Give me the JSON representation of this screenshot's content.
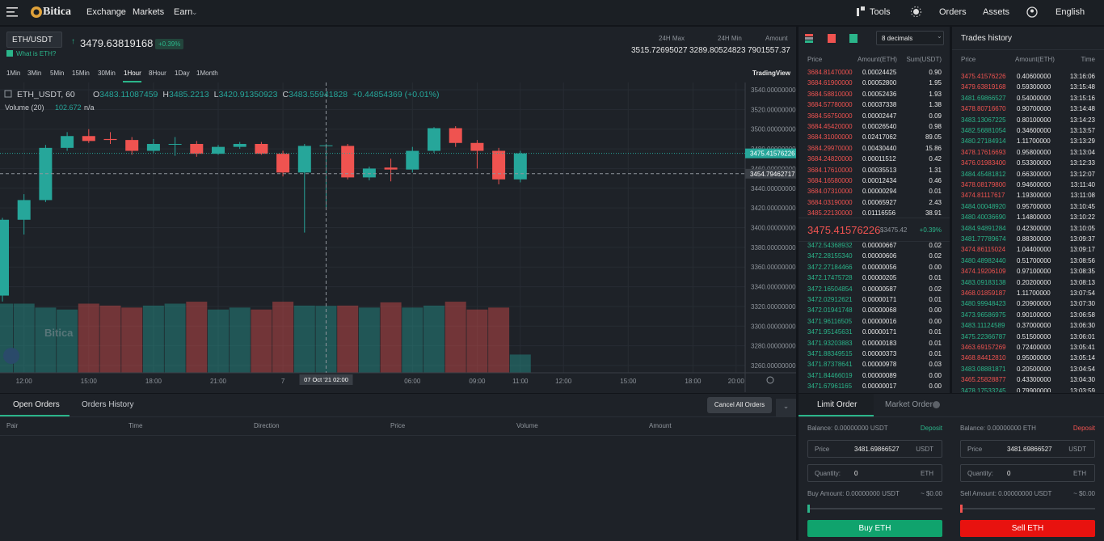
{
  "nav": {
    "logo": "Bitica",
    "links": [
      "Exchange",
      "Markets",
      "Earn"
    ],
    "tools": "Tools",
    "orders": "Orders",
    "assets": "Assets",
    "language": "English"
  },
  "ticker": {
    "pair": "ETH/USDT",
    "price": "3479.63819168",
    "change": "+0.39%",
    "info": "What is ETH?",
    "stats": [
      {
        "label": "24H Max",
        "value": "3515.72695027"
      },
      {
        "label": "24H Min",
        "value": "3289.80524823"
      },
      {
        "label": "Amount",
        "value": "7901557.37"
      }
    ]
  },
  "intervals": [
    "1Min",
    "3Min",
    "5Min",
    "15Min",
    "30Min",
    "1Hour",
    "8Hour",
    "1Day",
    "1Month"
  ],
  "active_interval": 5,
  "tradingview": "TradingView",
  "chart_data": {
    "type": "candlestick",
    "symbol": "ETH_USDT, 60",
    "ohlc_labels": [
      "O",
      "H",
      "L",
      "C"
    ],
    "change": "+0.44854369 (+0.01%)",
    "volume_label": "Volume (20)",
    "volume_extra": "n/a",
    "up_color": "#26a69a",
    "down_color": "#ef5350",
    "candles": [
      {
        "o": 3331,
        "h": 3410,
        "l": 3325,
        "c": 3408
      },
      {
        "o": 3408,
        "h": 3434,
        "l": 3393,
        "c": 3428
      },
      {
        "o": 3428,
        "h": 3484,
        "l": 3426,
        "c": 3481
      },
      {
        "o": 3481,
        "h": 3497,
        "l": 3478,
        "c": 3493
      },
      {
        "o": 3493,
        "h": 3500,
        "l": 3486,
        "c": 3488
      },
      {
        "o": 3490,
        "h": 3497,
        "l": 3485,
        "c": 3489
      },
      {
        "o": 3489,
        "h": 3492,
        "l": 3474,
        "c": 3478
      },
      {
        "o": 3478,
        "h": 3490,
        "l": 3476,
        "c": 3485
      },
      {
        "o": 3485,
        "h": 3492,
        "l": 3473,
        "c": 3485
      },
      {
        "o": 3485,
        "h": 3488,
        "l": 3472,
        "c": 3475
      },
      {
        "o": 3475,
        "h": 3484,
        "l": 3474,
        "c": 3482
      },
      {
        "o": 3482,
        "h": 3487,
        "l": 3480,
        "c": 3485
      },
      {
        "o": 3485,
        "h": 3487,
        "l": 3474,
        "c": 3475
      },
      {
        "o": 3475,
        "h": 3478,
        "l": 3452,
        "c": 3456
      },
      {
        "o": 3456,
        "h": 3485,
        "l": 3395,
        "c": 3483
      },
      {
        "o": 3483.11087459,
        "h": 3485.2213,
        "l": 3420.91350923,
        "c": 3483.55941828
      },
      {
        "o": 3483,
        "h": 3485,
        "l": 3449,
        "c": 3451
      },
      {
        "o": 3451,
        "h": 3462,
        "l": 3448,
        "c": 3460
      },
      {
        "o": 3461,
        "h": 3470,
        "l": 3447,
        "c": 3459
      },
      {
        "o": 3459,
        "h": 3482,
        "l": 3456,
        "c": 3478
      },
      {
        "o": 3478,
        "h": 3502,
        "l": 3476,
        "c": 3501
      },
      {
        "o": 3501,
        "h": 3503,
        "l": 3482,
        "c": 3486
      },
      {
        "o": 3486,
        "h": 3489,
        "l": 3460,
        "c": 3478
      },
      {
        "o": 3478,
        "h": 3481,
        "l": 3444,
        "c": 3449
      },
      {
        "o": 3449,
        "h": 3478,
        "l": 3446,
        "c": 3475.4
      }
    ],
    "volumes": [
      106,
      106,
      100,
      97,
      106,
      103,
      100,
      103,
      106,
      109,
      97,
      100,
      97,
      109,
      103,
      102.672,
      103,
      100,
      108,
      100,
      103,
      109,
      97,
      100,
      28
    ],
    "ylim": [
      3252.6,
      3547.4
    ],
    "vlim": [
      0,
      445
    ],
    "yticks": [
      {
        "value": 3540,
        "label": "3540.00000000"
      },
      {
        "value": 3520,
        "label": "3520.00000000"
      },
      {
        "value": 3500,
        "label": "3500.00000000"
      },
      {
        "value": 3480,
        "label": "3480.00000000"
      },
      {
        "value": 3460,
        "label": "3460.00000000"
      },
      {
        "value": 3440,
        "label": "3440.00000000"
      },
      {
        "value": 3420,
        "label": "3420.00000000"
      },
      {
        "value": 3400,
        "label": "3400.00000000"
      },
      {
        "value": 3380,
        "label": "3380.00000000"
      },
      {
        "value": 3360,
        "label": "3360.00000000"
      },
      {
        "value": 3340,
        "label": "3340.00000000"
      },
      {
        "value": 3320,
        "label": "3320.00000000"
      },
      {
        "value": 3300,
        "label": "3300.00000000"
      },
      {
        "value": 3280,
        "label": "3280.00000000"
      },
      {
        "value": 3260,
        "label": "3260.00000000"
      }
    ],
    "xticks": [
      {
        "value": 1,
        "label": "12:00"
      },
      {
        "value": 4,
        "label": "15:00"
      },
      {
        "value": 7,
        "label": "18:00"
      },
      {
        "value": 10,
        "label": "21:00"
      },
      {
        "value": 13,
        "label": "7"
      },
      {
        "value": 19,
        "label": "06:00"
      },
      {
        "value": 22,
        "label": "09:00"
      },
      {
        "value": 24,
        "label": "11:00"
      },
      {
        "value": 26,
        "label": "12:00"
      },
      {
        "value": 29,
        "label": "15:00"
      },
      {
        "value": 32,
        "label": "18:00"
      },
      {
        "value": 34,
        "label": "20:00"
      }
    ],
    "last_price": 3475.41576226,
    "crosshair": {
      "index": 15,
      "price": 3454.79462717,
      "time_label": "07 Oct '21 02:00"
    }
  },
  "orderbook": {
    "decimals": "8 decimals",
    "headers": [
      "Price",
      "Amount(ETH)",
      "Sum(USDT)"
    ],
    "asks": [
      [
        "3684.81470000",
        "0.00024425",
        "0.90"
      ],
      [
        "3684.61900000",
        "0.00052800",
        "1.95"
      ],
      [
        "3684.58810000",
        "0.00052436",
        "1.93"
      ],
      [
        "3684.57780000",
        "0.00037338",
        "1.38"
      ],
      [
        "3684.56750000",
        "0.00002447",
        "0.09"
      ],
      [
        "3684.45420000",
        "0.00026540",
        "0.98"
      ],
      [
        "3684.31000000",
        "0.02417062",
        "89.05"
      ],
      [
        "3684.29970000",
        "0.00430440",
        "15.86"
      ],
      [
        "3684.24820000",
        "0.00011512",
        "0.42"
      ],
      [
        "3684.17610000",
        "0.00035513",
        "1.31"
      ],
      [
        "3684.16580000",
        "0.00012434",
        "0.46"
      ],
      [
        "3684.07310000",
        "0.00000294",
        "0.01"
      ],
      [
        "3684.03190000",
        "0.00065927",
        "2.43"
      ],
      [
        "3485.22130000",
        "0.01116556",
        "38.91"
      ]
    ],
    "mid": {
      "price": "3475.41576226",
      "usd": "$3475.42",
      "change": "+0.39%"
    },
    "bids": [
      [
        "3472.54368932",
        "0.00000667",
        "0.02"
      ],
      [
        "3472.28155340",
        "0.00000606",
        "0.02"
      ],
      [
        "3472.27184466",
        "0.00000056",
        "0.00"
      ],
      [
        "3472.17475728",
        "0.00000205",
        "0.01"
      ],
      [
        "3472.16504854",
        "0.00000587",
        "0.02"
      ],
      [
        "3472.02912621",
        "0.00000171",
        "0.01"
      ],
      [
        "3472.01941748",
        "0.00000068",
        "0.00"
      ],
      [
        "3471.96116505",
        "0.00000016",
        "0.00"
      ],
      [
        "3471.95145631",
        "0.00000171",
        "0.01"
      ],
      [
        "3471.93203883",
        "0.00000183",
        "0.01"
      ],
      [
        "3471.88349515",
        "0.00000373",
        "0.01"
      ],
      [
        "3471.87378641",
        "0.00000978",
        "0.03"
      ],
      [
        "3471.84466019",
        "0.00000089",
        "0.00"
      ],
      [
        "3471.67961165",
        "0.00000017",
        "0.00"
      ]
    ]
  },
  "trades": {
    "title": "Trades history",
    "headers": [
      "Price",
      "Amount(ETH)",
      "Time"
    ],
    "buy_color": "#2bb58a",
    "sell_color": "#f05350",
    "rows": [
      [
        "3475.41576226",
        "0.40600000",
        "13:16:06",
        "sell"
      ],
      [
        "3479.63819168",
        "0.59300000",
        "13:15:48",
        "sell"
      ],
      [
        "3481.69866527",
        "0.54000000",
        "13:15:16",
        "buy"
      ],
      [
        "3478.80716670",
        "0.90700000",
        "13:14:48",
        "sell"
      ],
      [
        "3483.13067225",
        "0.80100000",
        "13:14:23",
        "buy"
      ],
      [
        "3482.56881054",
        "0.34600000",
        "13:13:57",
        "buy"
      ],
      [
        "3480.27184914",
        "1.11700000",
        "13:13:29",
        "buy"
      ],
      [
        "3478.17616693",
        "0.95800000",
        "13:13:04",
        "sell"
      ],
      [
        "3476.01983400",
        "0.53300000",
        "13:12:33",
        "sell"
      ],
      [
        "3484.45481812",
        "0.66300000",
        "13:12:07",
        "buy"
      ],
      [
        "3478.08179800",
        "0.94600000",
        "13:11:40",
        "sell"
      ],
      [
        "3474.81117617",
        "1.19300000",
        "13:11:08",
        "sell"
      ],
      [
        "3484.00048920",
        "0.95700000",
        "13:10:45",
        "buy"
      ],
      [
        "3480.40036690",
        "1.14800000",
        "13:10:22",
        "buy"
      ],
      [
        "3484.94891284",
        "0.42300000",
        "13:10:05",
        "buy"
      ],
      [
        "3481.77789674",
        "0.88300000",
        "13:09:37",
        "buy"
      ],
      [
        "3474.86115024",
        "1.04400000",
        "13:09:17",
        "sell"
      ],
      [
        "3480.48982440",
        "0.51700000",
        "13:08:56",
        "buy"
      ],
      [
        "3474.19206109",
        "0.97100000",
        "13:08:35",
        "sell"
      ],
      [
        "3483.09183138",
        "0.20200000",
        "13:08:13",
        "buy"
      ],
      [
        "3468.01859187",
        "1.11700000",
        "13:07:54",
        "sell"
      ],
      [
        "3480.99948423",
        "0.20900000",
        "13:07:30",
        "buy"
      ],
      [
        "3473.96586975",
        "0.90100000",
        "13:06:58",
        "buy"
      ],
      [
        "3483.11124589",
        "0.37000000",
        "13:06:30",
        "buy"
      ],
      [
        "3475.22366787",
        "0.51500000",
        "13:06:01",
        "buy"
      ],
      [
        "3463.69157269",
        "0.72400000",
        "13:05:41",
        "sell"
      ],
      [
        "3468.84412810",
        "0.95000000",
        "13:05:14",
        "sell"
      ],
      [
        "3483.08881871",
        "0.20500000",
        "13:04:54",
        "buy"
      ],
      [
        "3465.25828877",
        "0.43300000",
        "13:04:30",
        "sell"
      ],
      [
        "3478.17533245",
        "0.79900000",
        "13:03:59",
        "buy"
      ]
    ]
  },
  "orders": {
    "tabs": [
      "Open Orders",
      "Orders History"
    ],
    "cancel": "Cancel All Orders",
    "columns": [
      "Pair",
      "Time",
      "Direction",
      "Price",
      "Volume",
      "Amount"
    ]
  },
  "order_form": {
    "tabs": [
      "Limit Order",
      "Market Order"
    ],
    "buy": {
      "balance": "Balance: 0.00000000 USDT",
      "deposit": "Deposit",
      "price_label": "Price",
      "price": "3481.69866527",
      "price_unit": "USDT",
      "qty_label": "Quantity:",
      "qty": "0",
      "qty_unit": "ETH",
      "amount": "Buy Amount: 0.00000000 USDT",
      "approx": "~ $0.00",
      "button": "Buy ETH"
    },
    "sell": {
      "balance": "Balance: 0.00000000 ETH",
      "deposit": "Deposit",
      "price_label": "Price",
      "price": "3481.69866527",
      "price_unit": "USDT",
      "qty_label": "Quantity:",
      "qty": "0",
      "qty_unit": "ETH",
      "amount": "Sell Amount: 0.00000000 USDT",
      "approx": "~ $0.00",
      "button": "Sell ETH"
    }
  }
}
